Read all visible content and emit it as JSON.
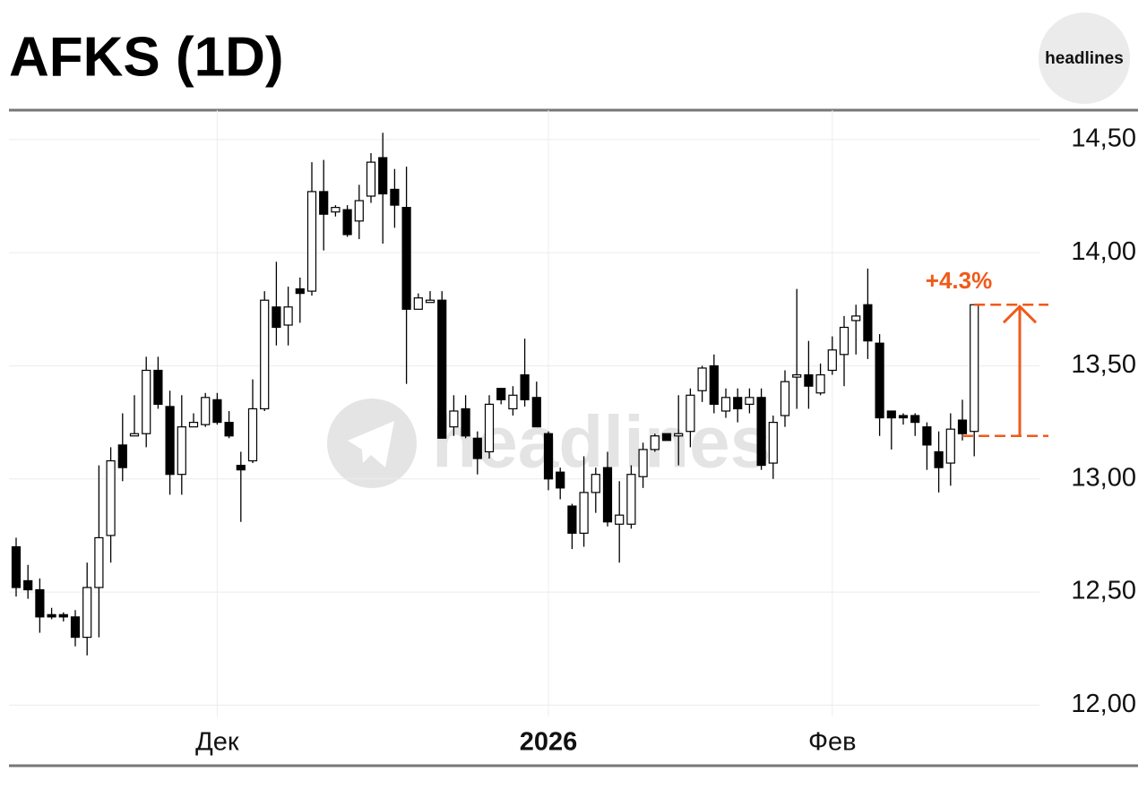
{
  "chart_data": {
    "type": "candlestick",
    "title": "AFKS (1D)",
    "logo": "headlines",
    "watermark": "headlines",
    "categories": [
      null,
      null,
      null,
      null,
      null,
      null,
      null,
      null,
      null,
      null,
      null,
      null,
      null,
      null,
      null,
      null,
      null,
      "Дек",
      null,
      null,
      null,
      null,
      null,
      null,
      null,
      null,
      null,
      null,
      null,
      null,
      null,
      null,
      null,
      null,
      null,
      null,
      null,
      null,
      null,
      null,
      null,
      null,
      null,
      null,
      null,
      "2026",
      null,
      null,
      null,
      null,
      null,
      null,
      null,
      null,
      null,
      null,
      null,
      null,
      null,
      null,
      null,
      null,
      null,
      null,
      null,
      null,
      null,
      null,
      null,
      "Фев",
      null,
      null,
      null,
      null,
      null,
      null,
      null,
      null,
      null,
      null,
      null,
      null
    ],
    "open": [
      12.7,
      12.55,
      12.51,
      12.4,
      12.4,
      12.39,
      12.3,
      12.52,
      12.75,
      13.15,
      13.19,
      13.2,
      13.48,
      13.32,
      13.02,
      13.23,
      13.24,
      13.35,
      13.25,
      13.06,
      13.08,
      13.31,
      13.76,
      13.68,
      13.84,
      13.83,
      14.27,
      14.18,
      14.19,
      14.14,
      14.25,
      14.42,
      14.28,
      14.2,
      13.75,
      13.78,
      13.79,
      13.23,
      13.31,
      13.18,
      13.12,
      13.4,
      13.31,
      13.46,
      13.36,
      13.2,
      13.03,
      12.88,
      12.76,
      12.94,
      13.05,
      12.8,
      12.8,
      13.01,
      13.13,
      13.2,
      13.19,
      13.21,
      13.39,
      13.5,
      13.3,
      13.36,
      13.33,
      13.36,
      13.07,
      13.28,
      13.45,
      13.46,
      13.38,
      13.48,
      13.55,
      13.7,
      13.77,
      13.6,
      13.3,
      13.28,
      13.28,
      13.23,
      13.12,
      13.07,
      13.26,
      13.21
    ],
    "high": [
      12.74,
      12.62,
      12.56,
      12.43,
      12.41,
      12.42,
      12.63,
      13.06,
      13.14,
      13.29,
      13.37,
      13.54,
      13.54,
      13.39,
      13.37,
      13.29,
      13.38,
      13.38,
      13.3,
      13.12,
      13.44,
      13.83,
      13.96,
      13.85,
      13.89,
      14.4,
      14.41,
      14.21,
      14.21,
      14.3,
      14.44,
      14.53,
      14.37,
      14.38,
      13.82,
      13.83,
      13.83,
      13.37,
      13.37,
      13.21,
      13.37,
      13.4,
      13.41,
      13.62,
      13.43,
      13.21,
      13.05,
      12.89,
      13.1,
      13.05,
      13.12,
      12.99,
      13.06,
      13.16,
      13.2,
      13.2,
      13.37,
      13.4,
      13.5,
      13.55,
      13.4,
      13.4,
      13.4,
      13.4,
      13.28,
      13.48,
      13.84,
      13.61,
      13.51,
      13.63,
      13.72,
      13.77,
      13.93,
      13.64,
      13.3,
      13.29,
      13.29,
      13.25,
      13.21,
      13.29,
      13.35,
      13.77
    ],
    "low": [
      12.48,
      12.47,
      12.32,
      12.38,
      12.37,
      12.26,
      12.22,
      12.3,
      12.63,
      12.99,
      13.19,
      13.14,
      13.31,
      12.93,
      12.93,
      13.23,
      13.23,
      13.24,
      13.18,
      12.81,
      13.07,
      13.3,
      13.59,
      13.59,
      13.69,
      13.81,
      14.01,
      14.16,
      14.07,
      14.06,
      14.22,
      14.04,
      14.11,
      13.42,
      13.75,
      13.78,
      13.18,
      13.19,
      13.18,
      13.02,
      13.09,
      13.33,
      13.28,
      13.32,
      13.23,
      12.95,
      12.91,
      12.69,
      12.7,
      12.85,
      12.79,
      12.63,
      12.78,
      12.96,
      13.12,
      13.17,
      13.06,
      13.14,
      13.34,
      13.29,
      13.27,
      13.25,
      13.29,
      13.04,
      13.0,
      13.23,
      13.31,
      13.31,
      13.37,
      13.46,
      13.41,
      13.55,
      13.53,
      13.19,
      13.13,
      13.24,
      13.19,
      13.04,
      12.94,
      12.97,
      13.17,
      13.1
    ],
    "close": [
      12.52,
      12.51,
      12.39,
      12.39,
      12.39,
      12.3,
      12.52,
      12.74,
      13.08,
      13.05,
      13.2,
      13.48,
      13.33,
      13.02,
      13.23,
      13.25,
      13.36,
      13.25,
      13.19,
      13.04,
      13.31,
      13.79,
      13.67,
      13.76,
      13.82,
      14.27,
      14.17,
      14.2,
      14.08,
      14.23,
      14.4,
      14.26,
      14.21,
      13.75,
      13.8,
      13.79,
      13.18,
      13.3,
      13.19,
      13.09,
      13.33,
      13.35,
      13.37,
      13.35,
      13.23,
      13.0,
      12.96,
      12.76,
      12.94,
      13.02,
      12.81,
      12.84,
      13.02,
      13.13,
      13.19,
      13.17,
      13.2,
      13.37,
      13.49,
      13.33,
      13.36,
      13.31,
      13.36,
      13.06,
      13.25,
      13.43,
      13.46,
      13.41,
      13.46,
      13.57,
      13.67,
      13.72,
      13.61,
      13.27,
      13.27,
      13.27,
      13.25,
      13.15,
      13.05,
      13.22,
      13.2,
      13.77
    ],
    "up_color": "#ffffff",
    "down_color": "#000000",
    "ylim": [
      11.95,
      14.63
    ],
    "yticks": [
      {
        "value": 12.0,
        "label": "12,00"
      },
      {
        "value": 12.5,
        "label": "12,50"
      },
      {
        "value": 13.0,
        "label": "13,00"
      },
      {
        "value": 13.5,
        "label": "13,50"
      },
      {
        "value": 14.0,
        "label": "14,00"
      },
      {
        "value": 14.5,
        "label": "14,50"
      }
    ],
    "grid": true,
    "annotation": {
      "text": "+4.3%",
      "from": 13.19,
      "to": 13.77,
      "color": "#f05a1a"
    }
  }
}
